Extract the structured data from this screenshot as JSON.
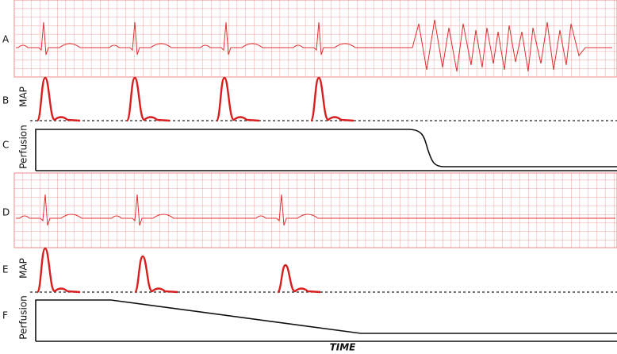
{
  "panels": [
    {
      "label": "A"
    },
    {
      "label": "B",
      "axis_label": "MAP"
    },
    {
      "label": "C",
      "axis_label": "Perfusion"
    },
    {
      "label": "D"
    },
    {
      "label": "E",
      "axis_label": "MAP"
    },
    {
      "label": "F",
      "axis_label": "Perfusion"
    }
  ],
  "x_axis_label": "TIME"
}
